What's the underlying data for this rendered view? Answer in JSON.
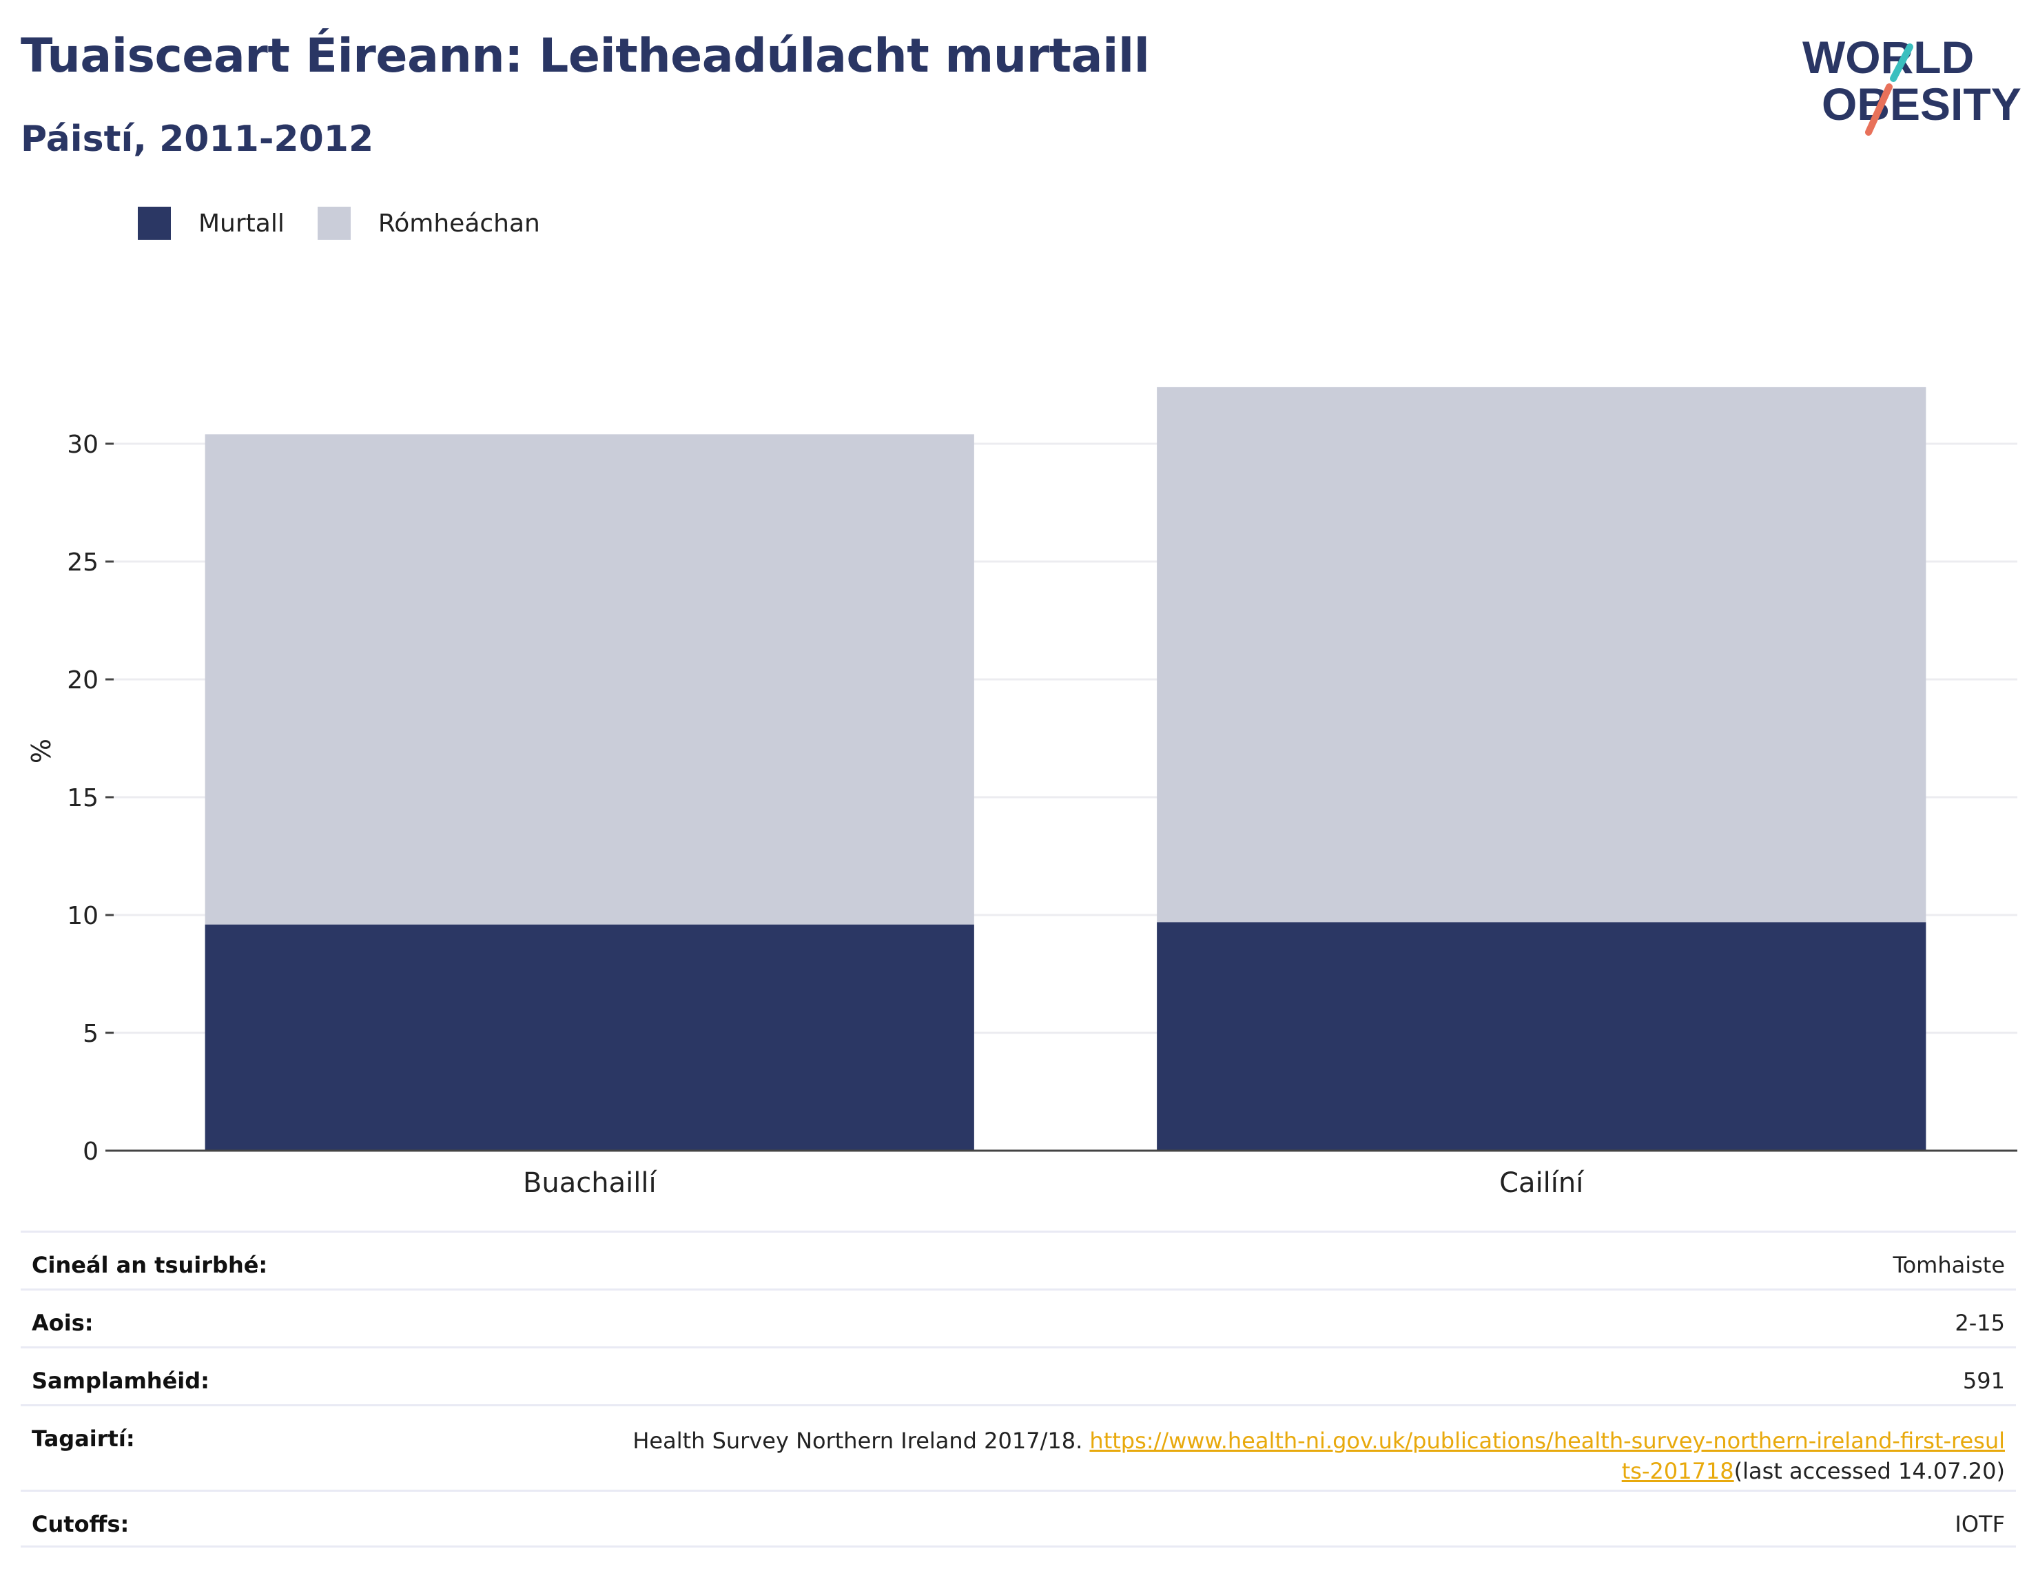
{
  "header": {
    "title": "Tuaisceart Éireann: Leitheadúlacht murtaill",
    "subtitle": "Páistí, 2011-2012",
    "logo_line1": "WORLD",
    "logo_line2": "OBESITY"
  },
  "colors": {
    "obese": "#2b3764",
    "overweight": "#cacdd9",
    "title": "#2a3664",
    "link": "#e8a90c",
    "logo_teal": "#3bbfbf",
    "logo_coral": "#e8715a"
  },
  "chart_data": {
    "type": "bar",
    "stacked": true,
    "categories": [
      "Buachaillí",
      "Cailíní"
    ],
    "series": [
      {
        "name": "Murtall",
        "values": [
          9.6,
          9.7
        ]
      },
      {
        "name": "Rómheáchan",
        "values": [
          20.8,
          22.7
        ]
      }
    ],
    "xlabel": "",
    "ylabel": "%",
    "ylim": [
      0,
      33
    ],
    "yticks": [
      0,
      5,
      10,
      15,
      20,
      25,
      30
    ],
    "grid": true,
    "legend_position": "top-left"
  },
  "meta": {
    "rows": [
      {
        "label": "Cineál an tsuirbhé:",
        "value": "Tomhaiste"
      },
      {
        "label": "Aois:",
        "value": "2-15"
      },
      {
        "label": "Samplamhéid:",
        "value": "591"
      },
      {
        "label": "Tagairtí:",
        "text_before": "Health Survey Northern Ireland 2017/18. ",
        "link": "https://www.health-ni.gov.uk/publications/health-survey-northern-ireland-first-results-201718",
        "text_after": "(last accessed 14.07.20)"
      },
      {
        "label": "Cutoffs:",
        "value": "IOTF"
      }
    ]
  }
}
